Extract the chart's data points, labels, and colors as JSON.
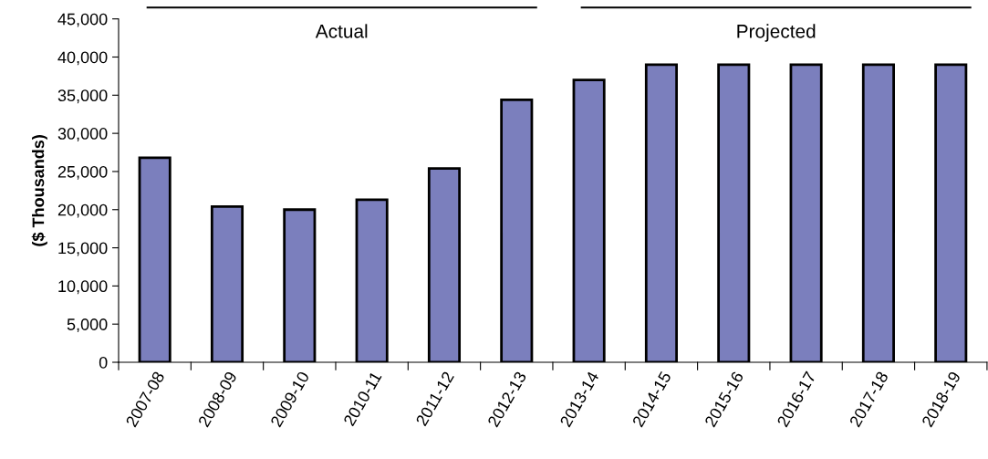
{
  "chart_data": {
    "type": "bar",
    "ylabel": "($ Thousands)",
    "categories": [
      "2007-08",
      "2008-09",
      "2009-10",
      "2010-11",
      "2011-12",
      "2012-13",
      "2013-14",
      "2014-15",
      "2015-16",
      "2016-17",
      "2017-18",
      "2018-19"
    ],
    "values": [
      26800,
      20400,
      20000,
      21300,
      25400,
      34400,
      37000,
      39000,
      39000,
      39000,
      39000,
      39000
    ],
    "color": "#7b7fbd",
    "ylim": [
      0,
      45000
    ],
    "yticks": [
      {
        "value": 0,
        "label": "0"
      },
      {
        "value": 5000,
        "label": "5,000"
      },
      {
        "value": 10000,
        "label": "10,000"
      },
      {
        "value": 15000,
        "label": "15,000"
      },
      {
        "value": 20000,
        "label": "20,000"
      },
      {
        "value": 25000,
        "label": "25,000"
      },
      {
        "value": 30000,
        "label": "30,000"
      },
      {
        "value": 35000,
        "label": "35,000"
      },
      {
        "value": 40000,
        "label": "40,000"
      },
      {
        "value": 45000,
        "label": "45,000"
      }
    ],
    "annotations": [
      "Actual",
      "Projected"
    ],
    "grid": false,
    "legend": false
  }
}
